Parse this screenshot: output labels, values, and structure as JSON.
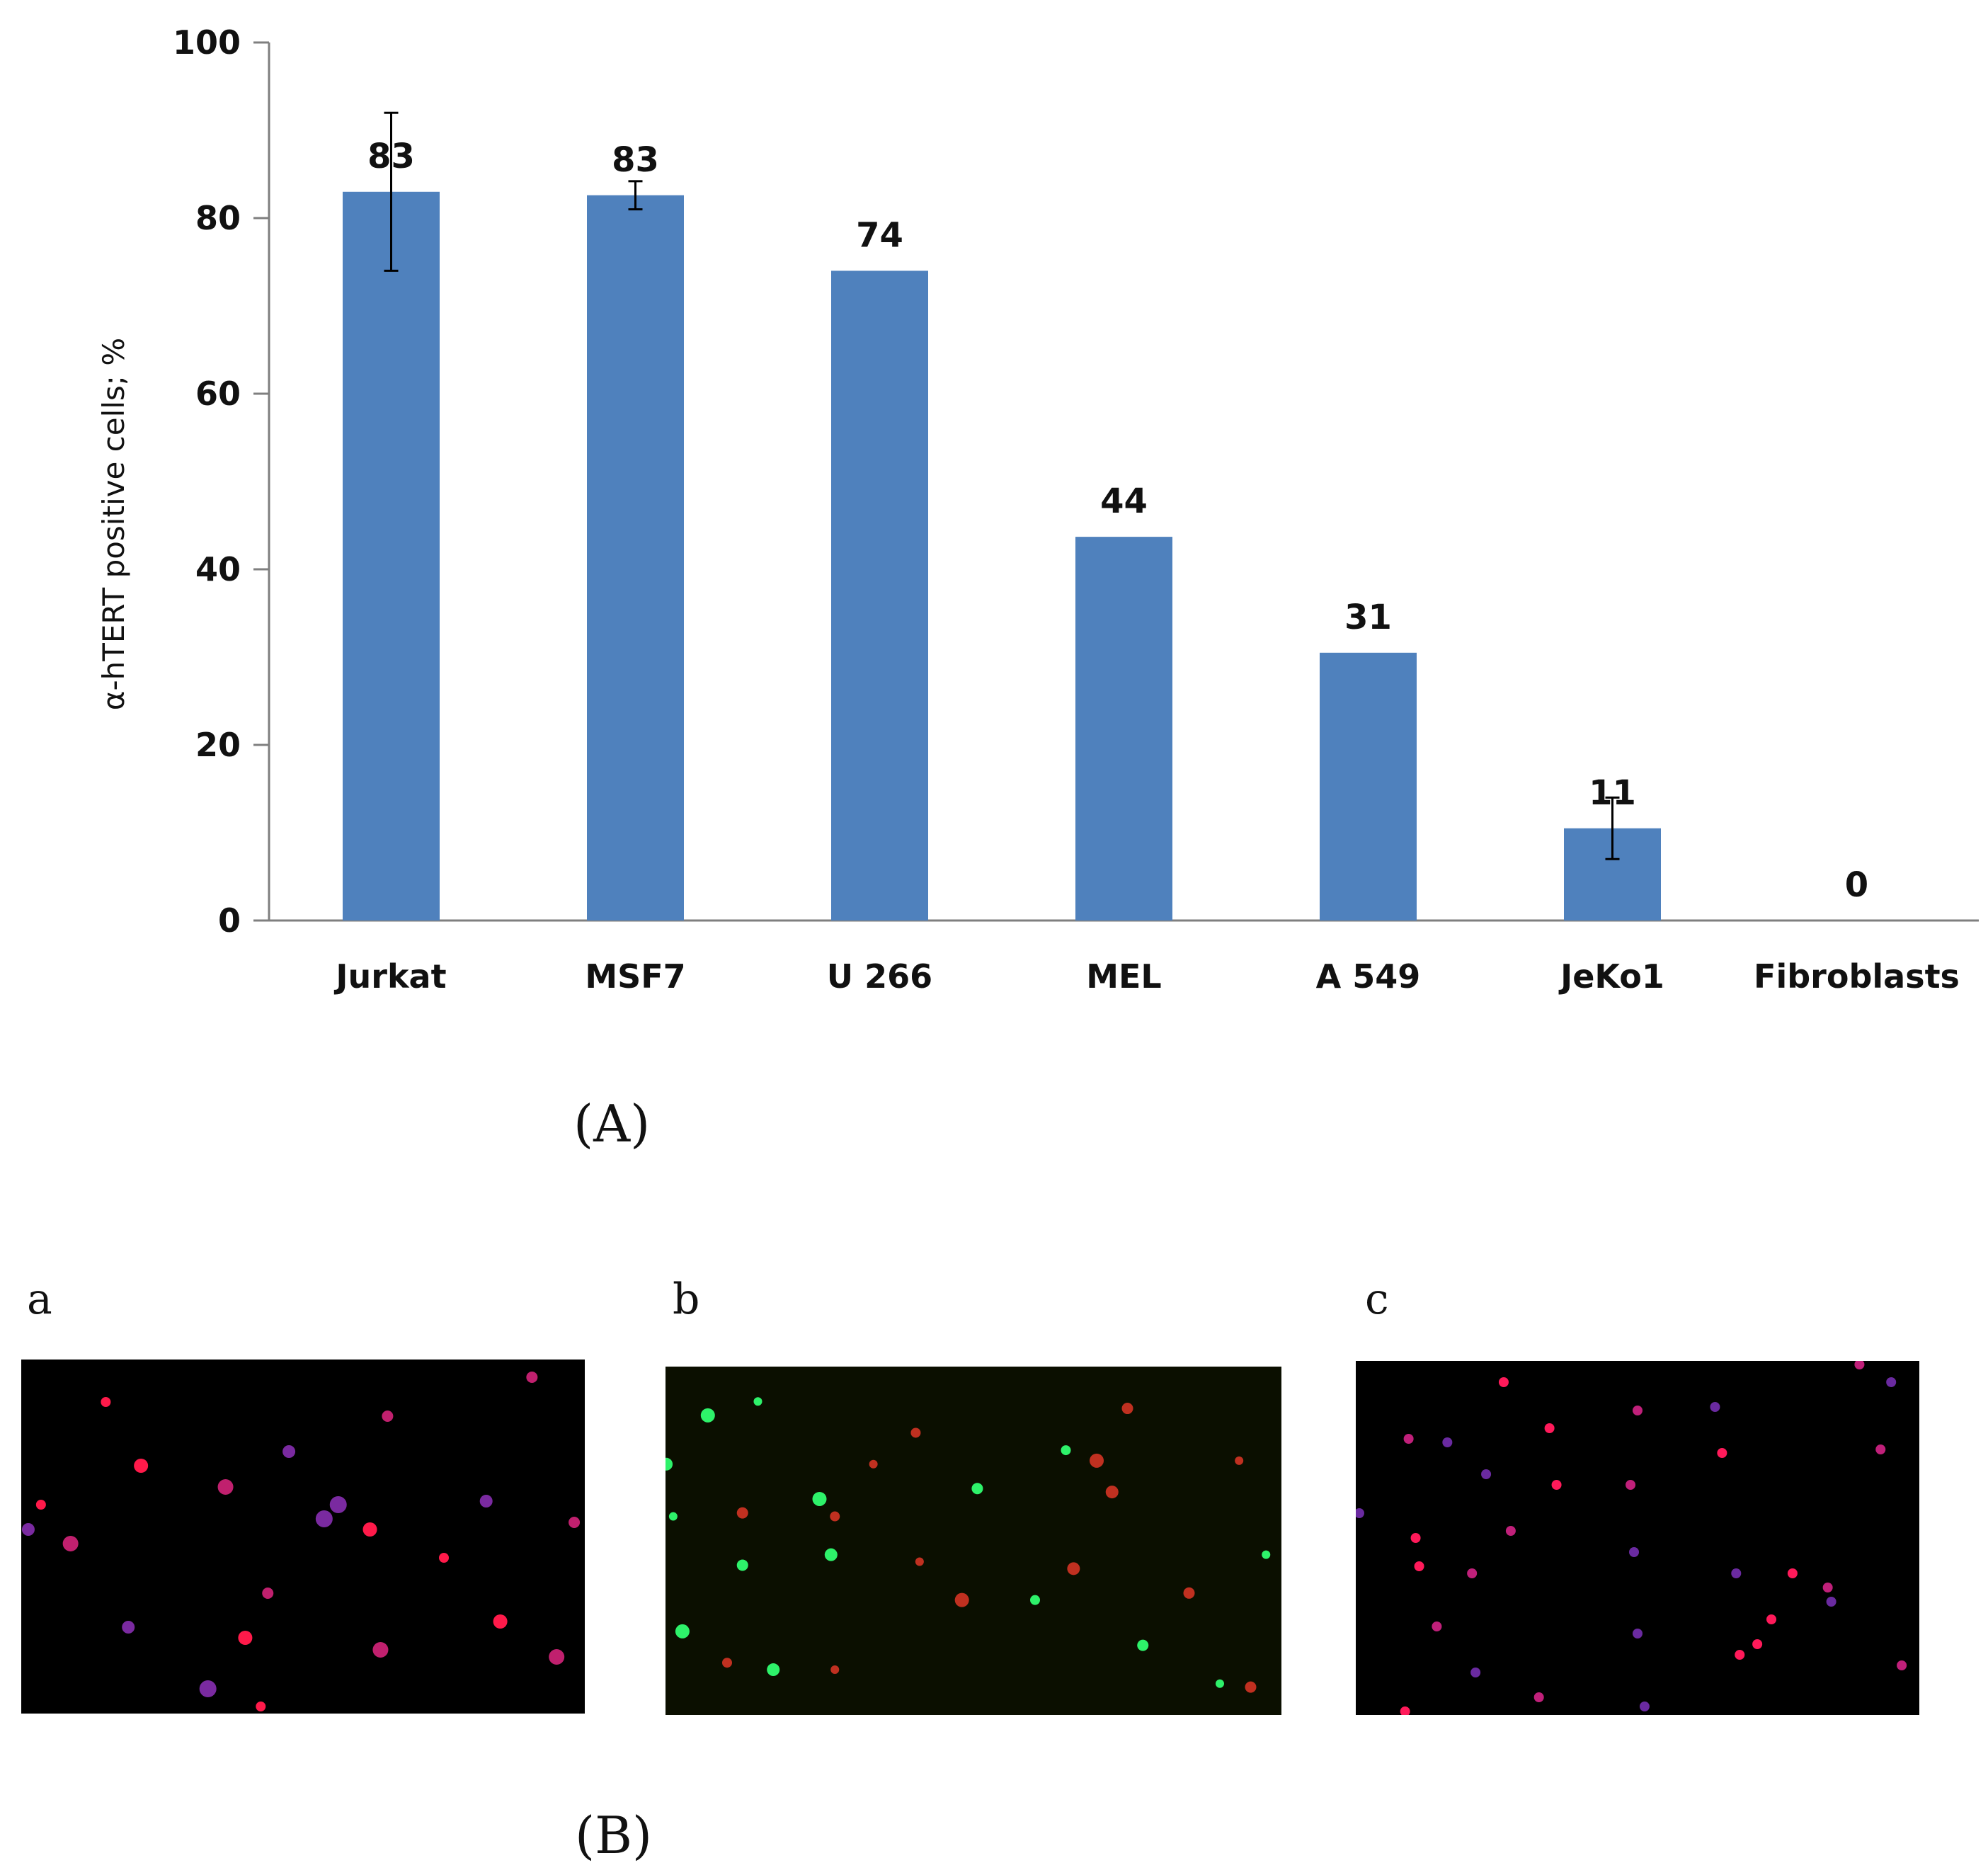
{
  "chart_data": {
    "type": "bar",
    "ylabel": "α-hTERT positive cells; %",
    "ylim": [
      0,
      100
    ],
    "yticks": [
      0,
      20,
      40,
      60,
      80,
      100
    ],
    "categories": [
      "Jurkat",
      "MSF7",
      "U 266",
      "MEL",
      "A 549",
      "JeKo1",
      "Fibroblasts"
    ],
    "values": [
      83,
      82.6,
      74,
      43.7,
      30.5,
      10.5,
      0
    ],
    "data_labels": [
      "83",
      "83",
      "74",
      "44",
      "31",
      "11",
      "0"
    ],
    "error_bars": [
      {
        "category": "Jurkat",
        "low": 74,
        "high": 92
      },
      {
        "category": "MSF7",
        "low": 81,
        "high": 84.2
      },
      {
        "category": "JeKo1",
        "low": 7,
        "high": 14
      }
    ],
    "bar_color": "#4f81bd",
    "grid": false
  },
  "panel_labels": {
    "A": "(A)",
    "B": "(B)"
  },
  "micrographs": [
    {
      "label": "a",
      "background": "#000000",
      "dot_colors": [
        "#ff1a4a",
        "#c0206e",
        "#7a2aa0"
      ]
    },
    {
      "label": "b",
      "background": "#0b0f00",
      "dot_colors": [
        "#2ef26a",
        "#c03020"
      ]
    },
    {
      "label": "c",
      "background": "#000000",
      "dot_colors": [
        "#ff1a5a",
        "#c0207a",
        "#6a2aa0"
      ]
    }
  ]
}
